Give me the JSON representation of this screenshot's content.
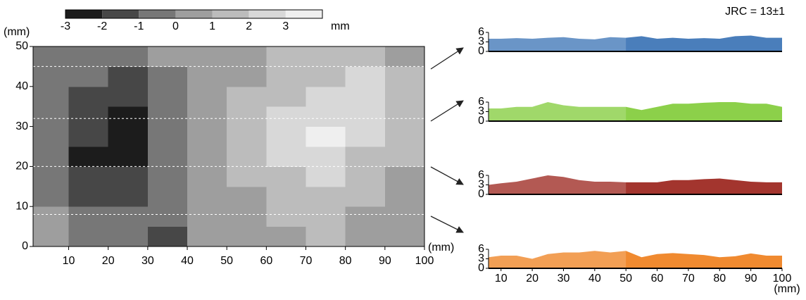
{
  "chart_data": [
    {
      "type": "heatmap",
      "xlabel": "(mm)",
      "ylabel": "(mm)",
      "x": [
        5,
        15,
        25,
        35,
        45,
        55,
        65,
        75,
        85,
        95
      ],
      "y": [
        2.5,
        7.5,
        12.5,
        17.5,
        22.5,
        27.5,
        32.5,
        37.5,
        42.5,
        47.5
      ],
      "z": [
        [
          0,
          -1,
          -1,
          -2,
          0,
          0,
          0,
          1,
          0,
          0
        ],
        [
          0,
          -1,
          -1,
          -1,
          0,
          0,
          1,
          1,
          0,
          0
        ],
        [
          -1,
          -2,
          -2,
          -1,
          0,
          0,
          1,
          1,
          1,
          0
        ],
        [
          -1,
          -2,
          -2,
          -1,
          0,
          1,
          1,
          2,
          1,
          0
        ],
        [
          -1,
          -3,
          -3,
          -1,
          0,
          1,
          2,
          2,
          1,
          1
        ],
        [
          -1,
          -2,
          -3,
          -1,
          0,
          1,
          2,
          3,
          2,
          1
        ],
        [
          -1,
          -2,
          -3,
          -1,
          0,
          1,
          2,
          2,
          2,
          1
        ],
        [
          -1,
          -2,
          -2,
          -1,
          0,
          1,
          1,
          2,
          2,
          1
        ],
        [
          -1,
          -1,
          -2,
          -1,
          0,
          0,
          1,
          1,
          2,
          1
        ],
        [
          -1,
          -1,
          -1,
          0,
          0,
          0,
          1,
          1,
          1,
          0
        ]
      ],
      "xlim": [
        1,
        100
      ],
      "ylim": [
        0,
        50
      ],
      "xticks": [
        10,
        20,
        30,
        40,
        50,
        60,
        70,
        80,
        90,
        100
      ],
      "yticks": [
        0,
        10,
        20,
        30,
        40,
        50
      ],
      "profile_lines": [
        45,
        32,
        20,
        8
      ],
      "colorbar": {
        "label": "mm",
        "lim": [
          -3,
          4
        ],
        "ticks": [
          -3,
          -2,
          -1,
          0,
          1,
          2,
          3
        ],
        "colors": [
          "#1c1c1c",
          "#474747",
          "#777777",
          "#9e9e9e",
          "#bcbcbc",
          "#d8d8d8",
          "#efefef"
        ]
      }
    },
    {
      "type": "area",
      "annotation": "JRC = 13±1",
      "color": "#4a7ebb",
      "x": [
        6,
        10,
        15,
        20,
        25,
        30,
        35,
        40,
        45,
        50,
        55,
        60,
        65,
        70,
        75,
        80,
        85,
        90,
        95,
        100
      ],
      "values": [
        4,
        4,
        4.2,
        4,
        4.3,
        4.5,
        4,
        3.8,
        4.5,
        4.3,
        4.8,
        4,
        4.3,
        4,
        4.2,
        4,
        4.8,
        5,
        4.3,
        4.3
      ],
      "xlim": [
        6,
        100
      ],
      "ylim": [
        0,
        6
      ],
      "yticks": [
        0,
        3,
        6
      ]
    },
    {
      "type": "area",
      "color": "#8cd04a",
      "x": [
        6,
        10,
        15,
        20,
        25,
        30,
        35,
        40,
        45,
        50,
        55,
        60,
        65,
        70,
        75,
        80,
        85,
        90,
        95,
        100
      ],
      "values": [
        4,
        4,
        4.5,
        4.5,
        6,
        5,
        4.5,
        4.5,
        4.5,
        4.5,
        3.5,
        4.5,
        5.5,
        5.5,
        5.8,
        6,
        6,
        5.5,
        5.5,
        4.5
      ],
      "xlim": [
        6,
        100
      ],
      "ylim": [
        0,
        6
      ],
      "yticks": [
        0,
        3,
        6
      ]
    },
    {
      "type": "area",
      "color": "#a3352e",
      "x": [
        6,
        10,
        15,
        20,
        25,
        30,
        35,
        40,
        45,
        50,
        55,
        60,
        65,
        70,
        75,
        80,
        85,
        90,
        95,
        100
      ],
      "values": [
        3,
        3.5,
        4,
        5,
        6,
        5.5,
        4.5,
        4,
        4,
        3.8,
        3.8,
        3.8,
        4.5,
        4.5,
        4.8,
        5,
        4.5,
        4,
        3.8,
        3.8
      ],
      "xlim": [
        6,
        100
      ],
      "ylim": [
        0,
        6
      ],
      "yticks": [
        0,
        3,
        6
      ]
    },
    {
      "type": "area",
      "color": "#f08a30",
      "xlabel": "(mm)",
      "x": [
        6,
        10,
        15,
        20,
        25,
        30,
        35,
        40,
        45,
        50,
        55,
        60,
        65,
        70,
        75,
        80,
        85,
        90,
        95,
        100
      ],
      "values": [
        3.5,
        4,
        4,
        3,
        4.5,
        5,
        5,
        5.5,
        5,
        5.5,
        3.5,
        4.5,
        4.8,
        4.5,
        4.2,
        3.5,
        3.8,
        4.7,
        4,
        4
      ],
      "xlim": [
        6,
        100
      ],
      "ylim": [
        0,
        6
      ],
      "yticks": [
        0,
        3,
        6
      ],
      "xticks": [
        10,
        20,
        30,
        40,
        50,
        60,
        70,
        80,
        90,
        100
      ]
    }
  ]
}
